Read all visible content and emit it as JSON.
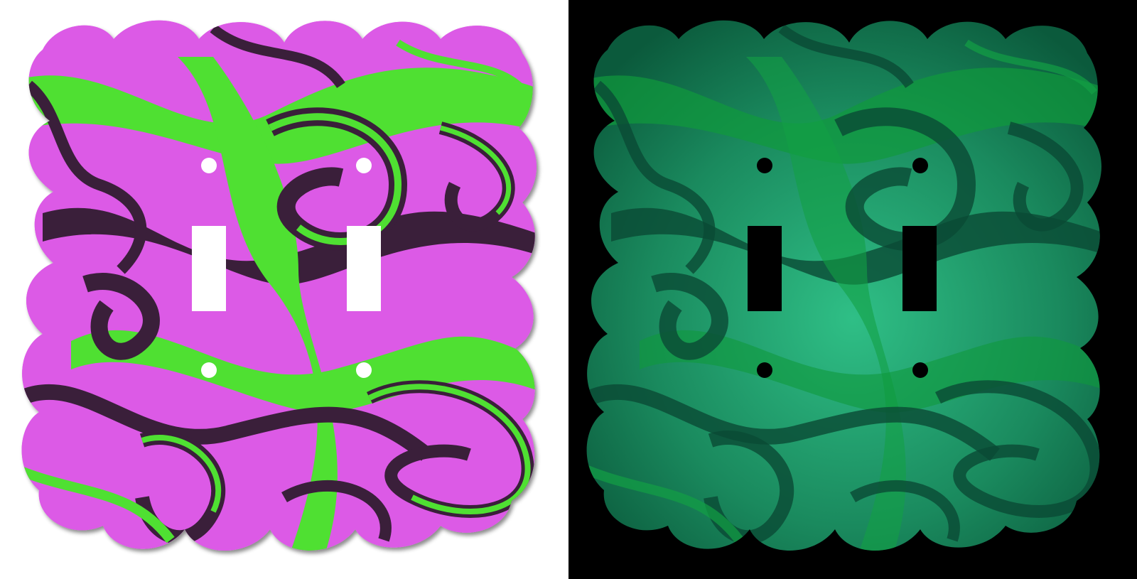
{
  "scene": {
    "description_items": [
      "daylight-view",
      "glow-in-dark-view"
    ],
    "product": "double-toggle-switch-plate",
    "panels": [
      {
        "id": "day",
        "background": "#ffffff",
        "colors": {
          "base": "#dc5ae6",
          "swirl_a": "#4fe032",
          "swirl_b": "#3a1f3a"
        },
        "cutout_color": "#ffffff",
        "shadow": true
      },
      {
        "id": "night",
        "background": "#000000",
        "colors": {
          "base": "#1f8a5e",
          "swirl_a": "#0f9a3c",
          "swirl_b": "#0a4a34"
        },
        "cutout_color": "#000000",
        "shadow": false
      }
    ],
    "switch_count": 2,
    "screw_holes_per_switch": 2
  }
}
